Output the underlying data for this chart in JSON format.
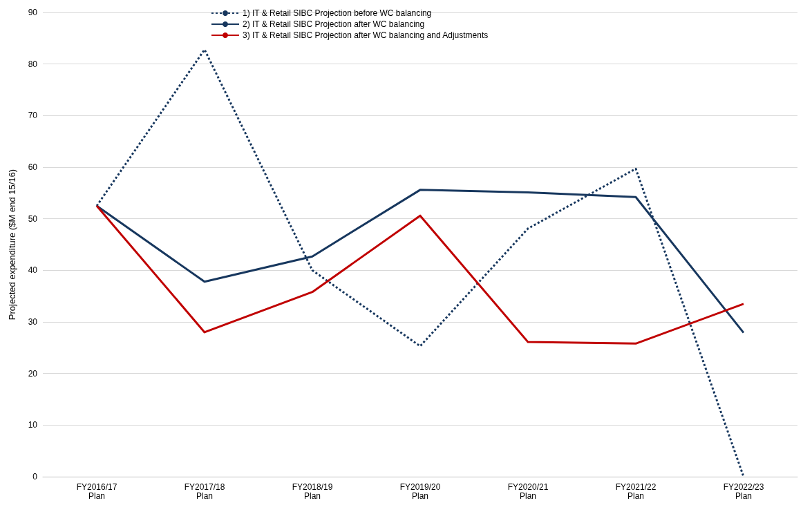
{
  "chart_data": {
    "type": "line",
    "ylabel": "Projected expenditure ($M end 15/16)",
    "categories": [
      "FY2016/17\nPlan",
      "FY2017/18\nPlan",
      "FY2018/19\nPlan",
      "FY2019/20\nPlan",
      "FY2020/21\nPlan",
      "FY2021/22\nPlan",
      "FY2022/23\nPlan"
    ],
    "series": [
      {
        "name": "1) IT & Retail SIBC Projection before WC balancing",
        "color": "#17375e",
        "line_style": "dotted",
        "values": [
          52.5,
          82.8,
          40.0,
          25.3,
          48.1,
          59.7,
          0
        ]
      },
      {
        "name": "2) IT & Retail SIBC Projection after WC balancing",
        "color": "#17375e",
        "line_style": "solid",
        "values": [
          52.5,
          37.8,
          42.7,
          55.6,
          55.1,
          54.2,
          27.9
        ]
      },
      {
        "name": "3) IT & Retail SIBC Projection after WC balancing and Adjustments",
        "color": "#c00000",
        "line_style": "solid",
        "values": [
          52.5,
          28.0,
          35.8,
          50.6,
          26.1,
          25.8,
          33.5
        ]
      }
    ],
    "ylim": [
      0,
      90
    ],
    "yticks": [
      0,
      10,
      20,
      30,
      40,
      50,
      60,
      70,
      80,
      90
    ],
    "grid": "y",
    "legend": "top",
    "marker": "none"
  }
}
